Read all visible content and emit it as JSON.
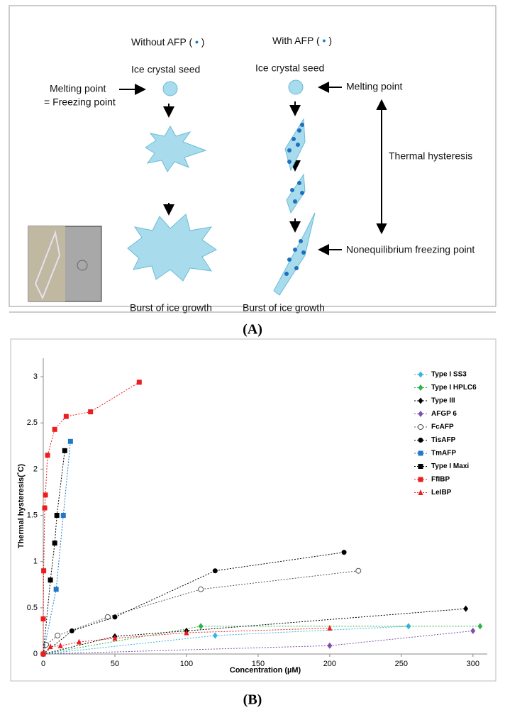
{
  "panel_a": {
    "left_heading": {
      "text": "Without AFP (",
      "close": ")"
    },
    "right_heading": {
      "text": "With AFP (",
      "close": ")"
    },
    "left_seed": "Ice crystal seed",
    "right_seed": "Ice crystal seed",
    "left_melting": "Melting point",
    "left_freezing": "= Freezing point",
    "right_melting": "Melting point",
    "thermal_hysteresis": "Thermal hysteresis",
    "nonequilibrium": "Nonequilibrium freezing point",
    "left_burst": "Burst of ice growth",
    "right_burst": "Burst of ice growth",
    "label": "(A)"
  },
  "panel_b_label": "(B)",
  "chart_data": {
    "type": "scatter",
    "x_label": "Concentration (µM)",
    "y_label": "Thermal hysteresis(˚C)",
    "xlim": [
      0,
      310
    ],
    "xticks": [
      0,
      50,
      100,
      150,
      200,
      250,
      300
    ],
    "ylim": [
      0,
      3.2
    ],
    "yticks": [
      0,
      0.5,
      1,
      1.5,
      2,
      2.5,
      3
    ],
    "legend": "top-right",
    "series": [
      {
        "name": "Type I SS3",
        "color": "#33b5e5",
        "marker": "diamond",
        "x": [
          0,
          120,
          255
        ],
        "values": [
          0,
          0.2,
          0.3
        ]
      },
      {
        "name": "Type I HPLC6",
        "color": "#2db34a",
        "marker": "diamond",
        "x": [
          0,
          110,
          305
        ],
        "values": [
          0,
          0.3,
          0.3
        ]
      },
      {
        "name": "Type III",
        "color": "#000000",
        "marker": "diamond",
        "x": [
          0,
          50,
          100,
          295
        ],
        "values": [
          0,
          0.19,
          0.25,
          0.49
        ]
      },
      {
        "name": "AFGP 6",
        "color": "#7f4fb0",
        "marker": "diamond",
        "x": [
          0,
          200,
          300
        ],
        "values": [
          0,
          0.09,
          0.25
        ]
      },
      {
        "name": "FcAFP",
        "color": "#555555",
        "marker": "open-circle",
        "x": [
          0,
          2,
          10,
          45,
          110,
          220
        ],
        "values": [
          0,
          0.1,
          0.2,
          0.4,
          0.7,
          0.9
        ]
      },
      {
        "name": "TisAFP",
        "color": "#000000",
        "marker": "circle",
        "x": [
          0,
          20,
          50,
          120,
          210
        ],
        "values": [
          0,
          0.25,
          0.4,
          0.9,
          1.1
        ]
      },
      {
        "name": "TmAFP",
        "color": "#1f78c8",
        "marker": "square",
        "x": [
          0,
          9,
          14,
          19
        ],
        "values": [
          0,
          0.7,
          1.5,
          2.3
        ]
      },
      {
        "name": "Type I Maxi",
        "color": "#000000",
        "marker": "square",
        "x": [
          0,
          5,
          8,
          9.5,
          15
        ],
        "values": [
          0,
          0.8,
          1.2,
          1.5,
          2.2
        ]
      },
      {
        "name": "FfIBP",
        "color": "#ee1c1c",
        "marker": "square",
        "x": [
          0,
          0,
          0.3,
          1,
          1.5,
          3,
          8,
          16,
          33,
          67
        ],
        "values": [
          0,
          0.38,
          0.9,
          1.58,
          1.72,
          2.15,
          2.43,
          2.57,
          2.62,
          2.94
        ]
      },
      {
        "name": "LeIBP",
        "color": "#ee1c1c",
        "marker": "triangle",
        "x": [
          0,
          5,
          12,
          25,
          50,
          100,
          200
        ],
        "values": [
          0,
          0.08,
          0.09,
          0.13,
          0.17,
          0.23,
          0.28
        ]
      }
    ]
  }
}
